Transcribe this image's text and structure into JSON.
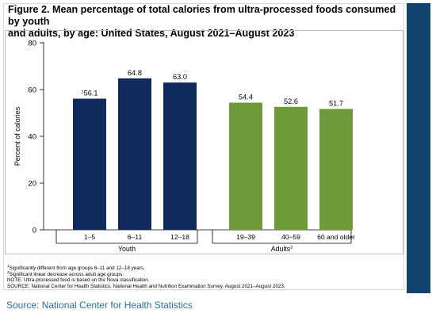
{
  "figure": {
    "title_line1": "Figure 2. Mean percentage of total calories from ultra-processed foods consumed by youth",
    "title_line2": "and adults, by age: United States, August 2021–August 2023"
  },
  "chart_data": {
    "type": "bar",
    "ylabel": "Percent of calories",
    "xlabel": "",
    "ylim": [
      0,
      80
    ],
    "yticks": [
      0,
      20,
      40,
      60,
      80
    ],
    "grid": false,
    "legend": "none",
    "groups": [
      {
        "name": "Youth",
        "superscript": "",
        "color": "#102a5c",
        "categories": [
          "1–5",
          "6–11",
          "12–18"
        ],
        "values": [
          56.1,
          64.8,
          63.0
        ],
        "labels": [
          "56.1",
          "64.8",
          "63.0"
        ],
        "label_superscripts": [
          "1",
          "",
          ""
        ]
      },
      {
        "name": "Adults",
        "superscript": "2",
        "color": "#6e9a3a",
        "categories": [
          "19–39",
          "40–59",
          "60 and older"
        ],
        "values": [
          54.4,
          52.6,
          51.7
        ],
        "labels": [
          "54.4",
          "52.6",
          "51.7"
        ],
        "label_superscripts": [
          "",
          "",
          ""
        ]
      }
    ]
  },
  "footnotes": {
    "note1_sup": "1",
    "note1": "Significantly different from age groups 6–11 and 12–18 years.",
    "note2_sup": "2",
    "note2": "Significant linear decrease across adult age groups.",
    "note3": "NOTE: Ultra-processed food is based on the Nova classification.",
    "note4": "SOURCE: National Center for Health Statistics, National Health and Nutrition Examination Survey, August 2021–August 2023."
  },
  "caption": {
    "source": "Source: National Center for Health Statistics"
  },
  "colors": {
    "youth_bar": "#102a5c",
    "adult_bar": "#6e9a3a",
    "side_bar": "#12436e",
    "source_link": "#2a6ea6"
  }
}
